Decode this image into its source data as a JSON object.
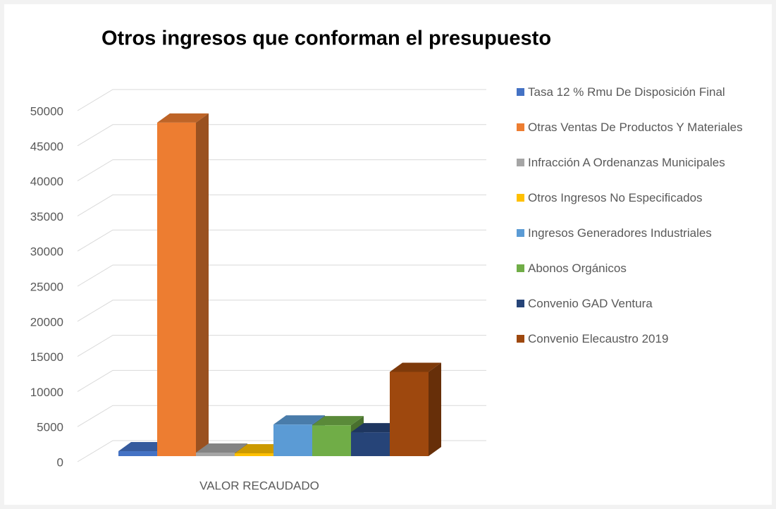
{
  "chart_data": {
    "type": "bar3d",
    "title": "Otros ingresos que conforman el presupuesto",
    "categories": [
      "VALOR RECAUDADO"
    ],
    "series": [
      {
        "name": "Tasa 12 % Rmu  De Disposición Final",
        "color": "#4472c4",
        "values": [
          700
        ]
      },
      {
        "name": "Otras Ventas De Productos Y Materiales",
        "color": "#ed7d31",
        "values": [
          47500
        ]
      },
      {
        "name": "Infracción A Ordenanzas Municipales",
        "color": "#a5a5a5",
        "values": [
          500
        ]
      },
      {
        "name": "Otros Ingresos No Especificados",
        "color": "#ffc000",
        "values": [
          400
        ]
      },
      {
        "name": "Ingresos Generadores  Industriales",
        "color": "#5b9bd5",
        "values": [
          4500
        ]
      },
      {
        "name": "Abonos Orgánicos",
        "color": "#70ad47",
        "values": [
          4400
        ]
      },
      {
        "name": "Convenio GAD Ventura",
        "color": "#264478",
        "values": [
          3400
        ]
      },
      {
        "name": "Convenio Elecaustro 2019",
        "color": "#9e480e",
        "values": [
          12000
        ]
      }
    ],
    "ylim": [
      0,
      50000
    ],
    "yticks": [
      0,
      5000,
      10000,
      15000,
      20000,
      25000,
      30000,
      35000,
      40000,
      45000,
      50000
    ],
    "grid": true,
    "legend": "right"
  }
}
